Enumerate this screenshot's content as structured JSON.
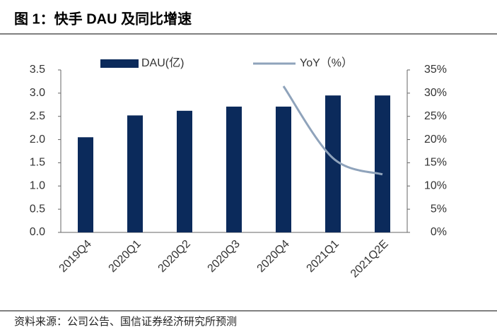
{
  "chart_data": {
    "type": "bar-line",
    "title": "图 1：快手 DAU 及同比增速",
    "source": "资料来源：公司公告、国信证券经济研究所预测",
    "categories": [
      "2019Q4",
      "2020Q1",
      "2020Q2",
      "2020Q3",
      "2020Q4",
      "2021Q1",
      "2021Q2E"
    ],
    "series": [
      {
        "name": "DAU(亿)",
        "type": "bar",
        "color": "#0b2a5b",
        "values": [
          2.05,
          2.52,
          2.62,
          2.71,
          2.71,
          2.95,
          2.95
        ]
      },
      {
        "name": "YoY（%）",
        "type": "line",
        "axis": "y2",
        "color": "#8fa3bb",
        "values": [
          null,
          null,
          null,
          null,
          31.5,
          16,
          12.5
        ]
      }
    ],
    "ylim": [
      0,
      3.5
    ],
    "yticks": [
      {
        "value": 0,
        "label": "0.0"
      },
      0.5,
      {
        "value": 1,
        "label": "1.0"
      },
      1.5,
      {
        "value": 2,
        "label": "2.0"
      },
      2.5,
      {
        "value": 3,
        "label": "3.0"
      },
      3.5
    ],
    "y2lim": [
      0,
      35
    ],
    "y2ticks": [
      {
        "value": 0,
        "label": "0%"
      },
      {
        "value": 5,
        "label": "5%"
      },
      {
        "value": 10,
        "label": "10%"
      },
      {
        "value": 15,
        "label": "15%"
      },
      {
        "value": 20,
        "label": "20%"
      },
      {
        "value": 25,
        "label": "25%"
      },
      {
        "value": 30,
        "label": "30%"
      },
      {
        "value": 35,
        "label": "35%"
      }
    ],
    "legend": "top"
  }
}
